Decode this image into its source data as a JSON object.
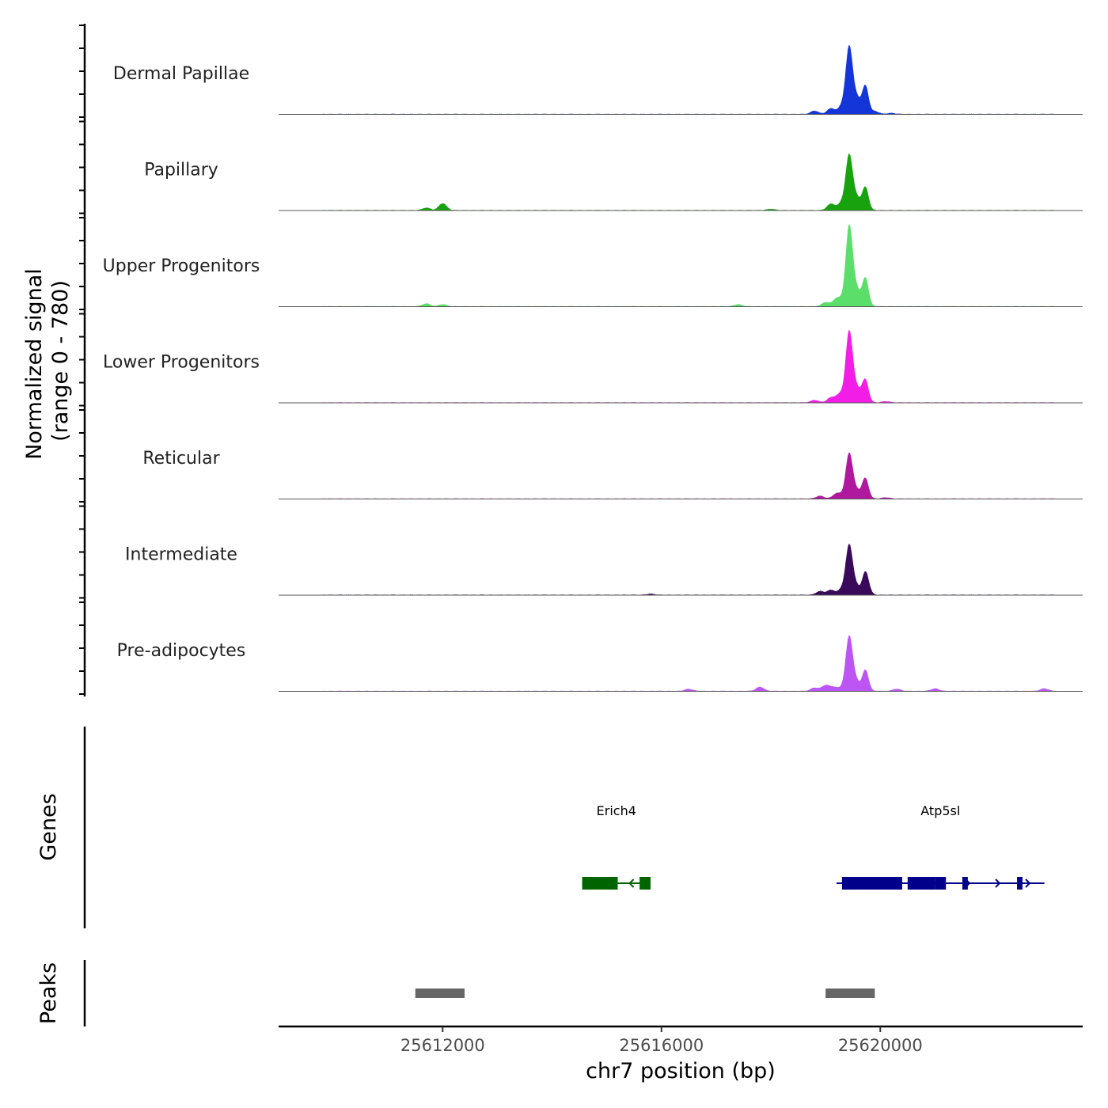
{
  "chart_data": {
    "type": "area",
    "title": "",
    "xlabel": "chr7 position (bp)",
    "ylabel": "Normalized signal",
    "ylabel_range": "(range 0 - 780)",
    "xlim": [
      25609000,
      25623700
    ],
    "ylim": [
      0,
      780
    ],
    "x_ticks": [
      {
        "value": 25612000,
        "label": "25612000"
      },
      {
        "value": 25616000,
        "label": "25616000"
      },
      {
        "value": 25620000,
        "label": "25620000"
      }
    ],
    "series": [
      {
        "name": "Dermal Papillae",
        "color": "#1436D8",
        "background_peaks": [
          [
            25618800,
            40
          ],
          [
            25619100,
            70
          ],
          [
            25619300,
            55
          ],
          [
            25619600,
            60
          ],
          [
            25619900,
            35
          ],
          [
            25620200,
            12
          ]
        ],
        "main_peak": 780,
        "secondary_peak": 330
      },
      {
        "name": "Papillary",
        "color": "#18A20E",
        "background_peaks": [
          [
            25611700,
            30
          ],
          [
            25612000,
            85
          ],
          [
            25618000,
            15
          ],
          [
            25619100,
            80
          ],
          [
            25619300,
            60
          ],
          [
            25619600,
            40
          ]
        ],
        "main_peak": 640,
        "secondary_peak": 270
      },
      {
        "name": "Upper Progenitors",
        "color": "#5BDE6A",
        "background_peaks": [
          [
            25611700,
            35
          ],
          [
            25612000,
            25
          ],
          [
            25617400,
            25
          ],
          [
            25619000,
            50
          ],
          [
            25619200,
            90
          ],
          [
            25619600,
            35
          ]
        ],
        "main_peak": 940,
        "secondary_peak": 330
      },
      {
        "name": "Lower Progenitors",
        "color": "#F21EE8",
        "background_peaks": [
          [
            25618800,
            30
          ],
          [
            25619100,
            60
          ],
          [
            25619250,
            70
          ],
          [
            25619650,
            45
          ],
          [
            25620100,
            15
          ]
        ],
        "main_peak": 830,
        "secondary_peak": 250
      },
      {
        "name": "Reticular",
        "color": "#B0189E",
        "background_peaks": [
          [
            25618900,
            35
          ],
          [
            25619200,
            60
          ],
          [
            25619700,
            40
          ],
          [
            25620100,
            15
          ]
        ],
        "main_peak": 530,
        "secondary_peak": 210
      },
      {
        "name": "Intermediate",
        "color": "#3A0A5A",
        "background_peaks": [
          [
            25618900,
            45
          ],
          [
            25619100,
            60
          ],
          [
            25619300,
            40
          ],
          [
            25619750,
            50
          ],
          [
            25615800,
            12
          ]
        ],
        "main_peak": 580,
        "secondary_peak": 230
      },
      {
        "name": "Pre-adipocytes",
        "color": "#BC55F2",
        "background_peaks": [
          [
            25616500,
            25
          ],
          [
            25617800,
            50
          ],
          [
            25618800,
            40
          ],
          [
            25619000,
            70
          ],
          [
            25619150,
            45
          ],
          [
            25620300,
            25
          ],
          [
            25621000,
            30
          ],
          [
            25623000,
            30
          ]
        ],
        "main_peak": 640,
        "secondary_peak": 250
      }
    ],
    "genes": [
      {
        "name": "Erich4",
        "strand": "-",
        "color": "#006400",
        "start": 25614550,
        "end": 25615800,
        "exons": [
          [
            25614550,
            25615200
          ],
          [
            25615600,
            25615800
          ]
        ]
      },
      {
        "name": "Atp5sl",
        "strand": "+",
        "color": "#00008B",
        "start": 25619200,
        "end": 25623000,
        "exons": [
          [
            25619300,
            25620400
          ],
          [
            25620500,
            25621000
          ],
          [
            25621000,
            25621200
          ],
          [
            25621500,
            25621600
          ],
          [
            25622500,
            25622600
          ]
        ]
      }
    ],
    "peaks": [
      {
        "start": 25611500,
        "end": 25612400
      },
      {
        "start": 25619000,
        "end": 25619900
      }
    ],
    "panel_titles": [
      "Genes",
      "Peaks"
    ]
  }
}
